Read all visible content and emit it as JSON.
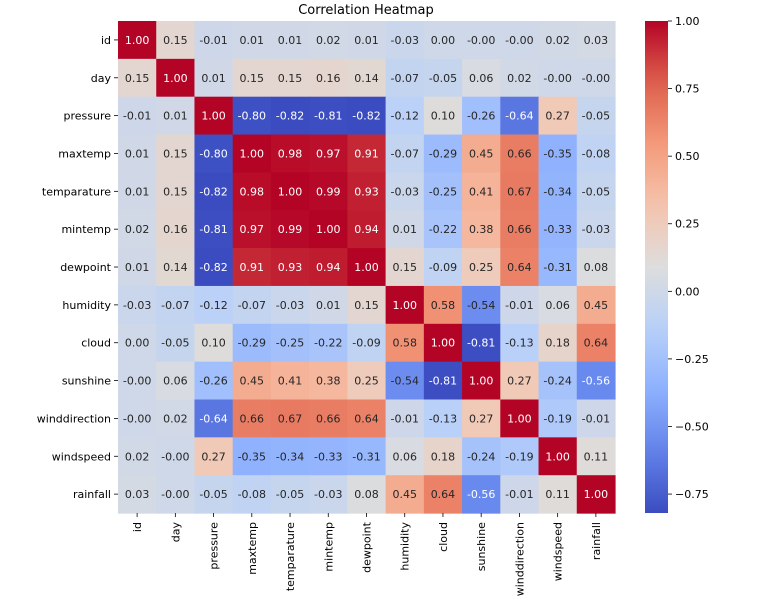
{
  "chart_data": {
    "type": "heatmap",
    "title": "Correlation Heatmap",
    "colormap": "coolwarm",
    "labels": [
      "id",
      "day",
      "pressure",
      "maxtemp",
      "temparature",
      "mintemp",
      "dewpoint",
      "humidity",
      "cloud",
      "sunshine",
      "winddirection",
      "windspeed",
      "rainfall"
    ],
    "matrix": [
      [
        1.0,
        0.15,
        -0.01,
        0.01,
        0.01,
        0.02,
        0.01,
        -0.03,
        0.0,
        -0.0,
        -0.0,
        0.02,
        0.03
      ],
      [
        0.15,
        1.0,
        0.01,
        0.15,
        0.15,
        0.16,
        0.14,
        -0.07,
        -0.05,
        0.06,
        0.02,
        -0.0,
        -0.0
      ],
      [
        -0.01,
        0.01,
        1.0,
        -0.8,
        -0.82,
        -0.81,
        -0.82,
        -0.12,
        0.1,
        -0.26,
        -0.64,
        0.27,
        -0.05
      ],
      [
        0.01,
        0.15,
        -0.8,
        1.0,
        0.98,
        0.97,
        0.91,
        -0.07,
        -0.29,
        0.45,
        0.66,
        -0.35,
        -0.08
      ],
      [
        0.01,
        0.15,
        -0.82,
        0.98,
        1.0,
        0.99,
        0.93,
        -0.03,
        -0.25,
        0.41,
        0.67,
        -0.34,
        -0.05
      ],
      [
        0.02,
        0.16,
        -0.81,
        0.97,
        0.99,
        1.0,
        0.94,
        0.01,
        -0.22,
        0.38,
        0.66,
        -0.33,
        -0.03
      ],
      [
        0.01,
        0.14,
        -0.82,
        0.91,
        0.93,
        0.94,
        1.0,
        0.15,
        -0.09,
        0.25,
        0.64,
        -0.31,
        0.08
      ],
      [
        -0.03,
        -0.07,
        -0.12,
        -0.07,
        -0.03,
        0.01,
        0.15,
        1.0,
        0.58,
        -0.54,
        -0.01,
        0.06,
        0.45
      ],
      [
        0.0,
        -0.05,
        0.1,
        -0.29,
        -0.25,
        -0.22,
        -0.09,
        0.58,
        1.0,
        -0.81,
        -0.13,
        0.18,
        0.64
      ],
      [
        -0.0,
        0.06,
        -0.26,
        0.45,
        0.41,
        0.38,
        0.25,
        -0.54,
        -0.81,
        1.0,
        0.27,
        -0.24,
        -0.56
      ],
      [
        -0.0,
        0.02,
        -0.64,
        0.66,
        0.67,
        0.66,
        0.64,
        -0.01,
        -0.13,
        0.27,
        1.0,
        -0.19,
        -0.01
      ],
      [
        0.02,
        -0.0,
        0.27,
        -0.35,
        -0.34,
        -0.33,
        -0.31,
        0.06,
        0.18,
        -0.24,
        -0.19,
        1.0,
        0.11
      ],
      [
        0.03,
        -0.0,
        -0.05,
        -0.08,
        -0.05,
        -0.03,
        0.08,
        0.45,
        0.64,
        -0.56,
        -0.01,
        0.11,
        1.0
      ]
    ],
    "vmin": -0.82,
    "vmax": 1.0,
    "colorbar_ticks": [
      "1.00",
      "0.75",
      "0.50",
      "0.25",
      "0.00",
      "−0.25",
      "−0.50",
      "−0.75"
    ],
    "colorbar_tick_values": [
      1.0,
      0.75,
      0.5,
      0.25,
      0.0,
      -0.25,
      -0.5,
      -0.75
    ]
  }
}
